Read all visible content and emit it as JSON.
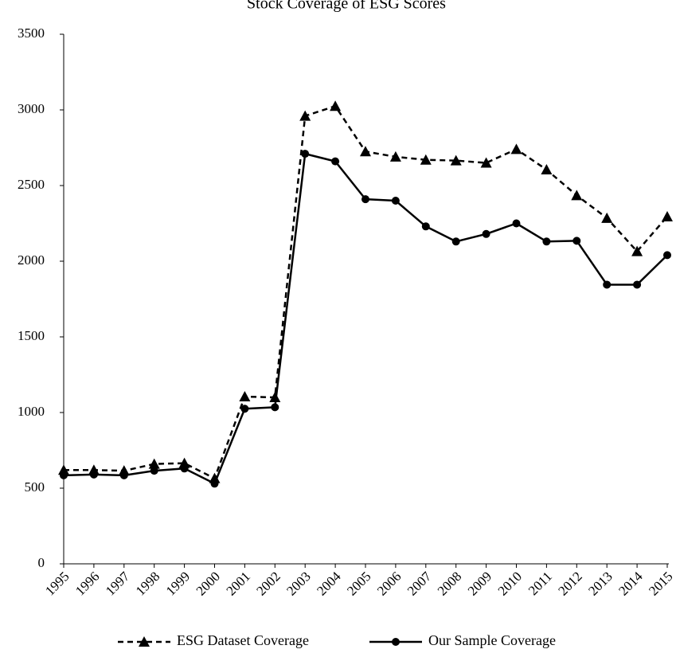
{
  "chart_data": {
    "type": "line",
    "title": "Stock Coverage of ESG Scores",
    "xlabel": "",
    "ylabel": "",
    "categories": [
      "1995",
      "1996",
      "1997",
      "1998",
      "1999",
      "2000",
      "2001",
      "2002",
      "2003",
      "2004",
      "2005",
      "2006",
      "2007",
      "2008",
      "2009",
      "2010",
      "2011",
      "2012",
      "2013",
      "2014",
      "2015"
    ],
    "y_ticks": [
      "0",
      "500",
      "1000",
      "1500",
      "2000",
      "2500",
      "3000",
      "3500"
    ],
    "ylim": [
      0,
      3500
    ],
    "grid": false,
    "legend_position": "bottom",
    "series": [
      {
        "name": "ESG Dataset Coverage",
        "style": "dashed",
        "marker": "triangle",
        "color": "#000000",
        "values": [
          620,
          620,
          615,
          660,
          665,
          565,
          1105,
          1100,
          2960,
          3025,
          2725,
          2690,
          2670,
          2665,
          2650,
          2740,
          2605,
          2435,
          2285,
          2065,
          2295
        ]
      },
      {
        "name": "Our Sample Coverage",
        "style": "solid",
        "marker": "circle",
        "color": "#000000",
        "values": [
          585,
          590,
          585,
          615,
          630,
          530,
          1025,
          1035,
          2710,
          2660,
          2410,
          2400,
          2230,
          2130,
          2180,
          2250,
          2130,
          2135,
          1845,
          1845,
          2040
        ]
      }
    ]
  }
}
